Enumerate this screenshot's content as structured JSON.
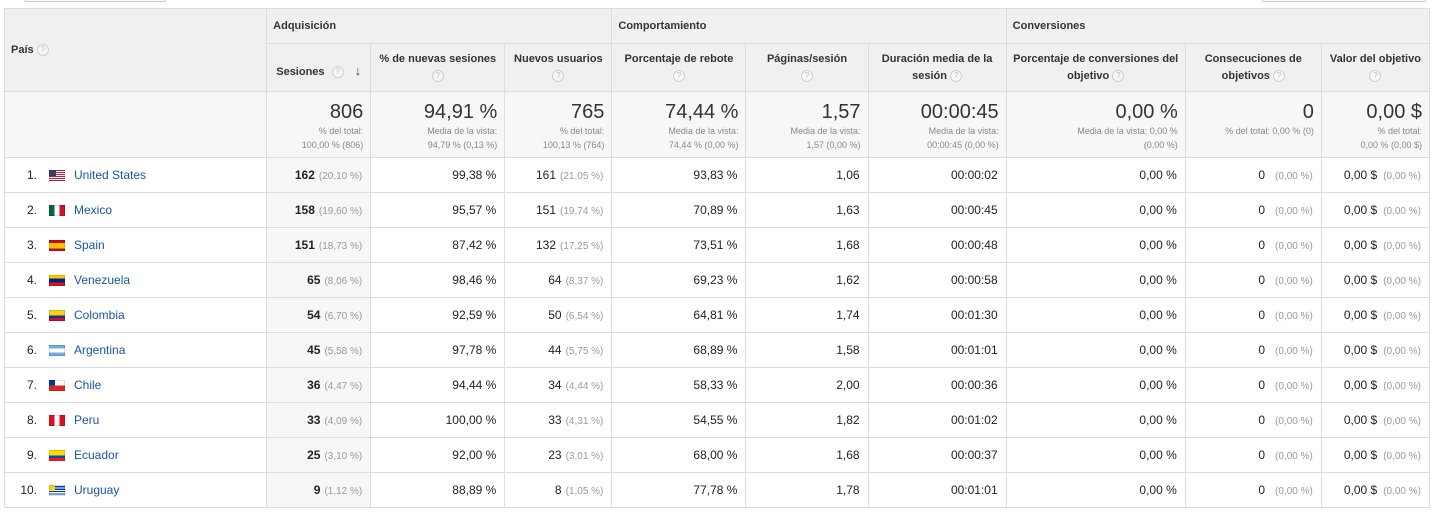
{
  "groups": {
    "acquisition": "Adquisición",
    "behavior": "Comportamiento",
    "conversions": "Conversiones"
  },
  "headers": {
    "country": "País",
    "sessions": "Sesiones",
    "new_sessions_pct": "% de nuevas sesiones",
    "new_users": "Nuevos usuarios",
    "bounce_rate": "Porcentaje de rebote",
    "pages_session": "Páginas/sesión",
    "avg_duration": "Duración media de la sesión",
    "goal_conv_rate": "Porcentaje de conversiones del objetivo",
    "goal_completions": "Consecuciones de objetivos",
    "goal_value": "Valor del objetivo"
  },
  "help_glyph": "?",
  "sort_glyph": "↓",
  "totals": {
    "sessions": {
      "value": "806",
      "sub1": "% del total:",
      "sub2": "100,00 % (806)"
    },
    "new_sessions_pct": {
      "value": "94,91 %",
      "sub1": "Media de la vista:",
      "sub2": "94,79 % (0,13 %)"
    },
    "new_users": {
      "value": "765",
      "sub1": "% del total:",
      "sub2": "100,13 % (764)"
    },
    "bounce_rate": {
      "value": "74,44 %",
      "sub1": "Media de la vista:",
      "sub2": "74,44 % (0,00 %)"
    },
    "pages_session": {
      "value": "1,57",
      "sub1": "Media de la vista:",
      "sub2": "1,57 (0,00 %)"
    },
    "avg_duration": {
      "value": "00:00:45",
      "sub1": "Media de la vista:",
      "sub2": "00:00:45 (0,00 %)"
    },
    "goal_conv_rate": {
      "value": "0,00 %",
      "sub1": "Media de la vista: 0,00 %",
      "sub2": "(0,00 %)"
    },
    "goal_completions": {
      "value": "0",
      "sub1": "% del total: 0,00 % (0)",
      "sub2": ""
    },
    "goal_value": {
      "value": "0,00 $",
      "sub1": "% del total:",
      "sub2": "0,00 % (0,00 $)"
    }
  },
  "rows": [
    {
      "idx": "1.",
      "country": "United States",
      "flag": "us",
      "sessions": "162",
      "sessions_pct": "(20,10 %)",
      "new_sessions_pct": "99,38 %",
      "new_users": "161",
      "new_users_pct": "(21,05 %)",
      "bounce_rate": "93,83 %",
      "pages_session": "1,06",
      "avg_duration": "00:00:02",
      "goal_conv_rate": "0,00 %",
      "goal_completions": "0",
      "goal_completions_pct": "(0,00 %)",
      "goal_value": "0,00 $",
      "goal_value_pct": "(0,00 %)"
    },
    {
      "idx": "2.",
      "country": "Mexico",
      "flag": "mx",
      "sessions": "158",
      "sessions_pct": "(19,60 %)",
      "new_sessions_pct": "95,57 %",
      "new_users": "151",
      "new_users_pct": "(19,74 %)",
      "bounce_rate": "70,89 %",
      "pages_session": "1,63",
      "avg_duration": "00:00:45",
      "goal_conv_rate": "0,00 %",
      "goal_completions": "0",
      "goal_completions_pct": "(0,00 %)",
      "goal_value": "0,00 $",
      "goal_value_pct": "(0,00 %)"
    },
    {
      "idx": "3.",
      "country": "Spain",
      "flag": "es",
      "sessions": "151",
      "sessions_pct": "(18,73 %)",
      "new_sessions_pct": "87,42 %",
      "new_users": "132",
      "new_users_pct": "(17,25 %)",
      "bounce_rate": "73,51 %",
      "pages_session": "1,68",
      "avg_duration": "00:00:48",
      "goal_conv_rate": "0,00 %",
      "goal_completions": "0",
      "goal_completions_pct": "(0,00 %)",
      "goal_value": "0,00 $",
      "goal_value_pct": "(0,00 %)"
    },
    {
      "idx": "4.",
      "country": "Venezuela",
      "flag": "ve",
      "sessions": "65",
      "sessions_pct": "(8,06 %)",
      "new_sessions_pct": "98,46 %",
      "new_users": "64",
      "new_users_pct": "(8,37 %)",
      "bounce_rate": "69,23 %",
      "pages_session": "1,62",
      "avg_duration": "00:00:58",
      "goal_conv_rate": "0,00 %",
      "goal_completions": "0",
      "goal_completions_pct": "(0,00 %)",
      "goal_value": "0,00 $",
      "goal_value_pct": "(0,00 %)"
    },
    {
      "idx": "5.",
      "country": "Colombia",
      "flag": "co",
      "sessions": "54",
      "sessions_pct": "(6,70 %)",
      "new_sessions_pct": "92,59 %",
      "new_users": "50",
      "new_users_pct": "(6,54 %)",
      "bounce_rate": "64,81 %",
      "pages_session": "1,74",
      "avg_duration": "00:01:30",
      "goal_conv_rate": "0,00 %",
      "goal_completions": "0",
      "goal_completions_pct": "(0,00 %)",
      "goal_value": "0,00 $",
      "goal_value_pct": "(0,00 %)"
    },
    {
      "idx": "6.",
      "country": "Argentina",
      "flag": "ar",
      "sessions": "45",
      "sessions_pct": "(5,58 %)",
      "new_sessions_pct": "97,78 %",
      "new_users": "44",
      "new_users_pct": "(5,75 %)",
      "bounce_rate": "68,89 %",
      "pages_session": "1,58",
      "avg_duration": "00:01:01",
      "goal_conv_rate": "0,00 %",
      "goal_completions": "0",
      "goal_completions_pct": "(0,00 %)",
      "goal_value": "0,00 $",
      "goal_value_pct": "(0,00 %)"
    },
    {
      "idx": "7.",
      "country": "Chile",
      "flag": "cl",
      "sessions": "36",
      "sessions_pct": "(4,47 %)",
      "new_sessions_pct": "94,44 %",
      "new_users": "34",
      "new_users_pct": "(4,44 %)",
      "bounce_rate": "58,33 %",
      "pages_session": "2,00",
      "avg_duration": "00:00:36",
      "goal_conv_rate": "0,00 %",
      "goal_completions": "0",
      "goal_completions_pct": "(0,00 %)",
      "goal_value": "0,00 $",
      "goal_value_pct": "(0,00 %)"
    },
    {
      "idx": "8.",
      "country": "Peru",
      "flag": "pe",
      "sessions": "33",
      "sessions_pct": "(4,09 %)",
      "new_sessions_pct": "100,00 %",
      "new_users": "33",
      "new_users_pct": "(4,31 %)",
      "bounce_rate": "54,55 %",
      "pages_session": "1,82",
      "avg_duration": "00:01:02",
      "goal_conv_rate": "0,00 %",
      "goal_completions": "0",
      "goal_completions_pct": "(0,00 %)",
      "goal_value": "0,00 $",
      "goal_value_pct": "(0,00 %)"
    },
    {
      "idx": "9.",
      "country": "Ecuador",
      "flag": "ec",
      "sessions": "25",
      "sessions_pct": "(3,10 %)",
      "new_sessions_pct": "92,00 %",
      "new_users": "23",
      "new_users_pct": "(3,01 %)",
      "bounce_rate": "68,00 %",
      "pages_session": "1,68",
      "avg_duration": "00:00:37",
      "goal_conv_rate": "0,00 %",
      "goal_completions": "0",
      "goal_completions_pct": "(0,00 %)",
      "goal_value": "0,00 $",
      "goal_value_pct": "(0,00 %)"
    },
    {
      "idx": "10.",
      "country": "Uruguay",
      "flag": "uy",
      "sessions": "9",
      "sessions_pct": "(1,12 %)",
      "new_sessions_pct": "88,89 %",
      "new_users": "8",
      "new_users_pct": "(1,05 %)",
      "bounce_rate": "77,78 %",
      "pages_session": "1,78",
      "avg_duration": "00:01:01",
      "goal_conv_rate": "0,00 %",
      "goal_completions": "0",
      "goal_completions_pct": "(0,00 %)",
      "goal_value": "0,00 $",
      "goal_value_pct": "(0,00 %)"
    }
  ],
  "flag_colors": {
    "us": [
      "#3c3b6e",
      "#b22234",
      "#ffffff"
    ],
    "mx": [
      "#006847",
      "#ffffff",
      "#ce1126"
    ],
    "es": [
      "#c60b1e",
      "#ffc400"
    ],
    "ve": [
      "#ffcc00",
      "#00247d",
      "#cf142b"
    ],
    "co": [
      "#fcd116",
      "#003893",
      "#ce1126"
    ],
    "ar": [
      "#74acdf",
      "#ffffff"
    ],
    "cl": [
      "#ffffff",
      "#d52b1e",
      "#0039a6"
    ],
    "pe": [
      "#d91023",
      "#ffffff"
    ],
    "ec": [
      "#ffdd00",
      "#034ea2",
      "#ed1c24"
    ],
    "uy": [
      "#ffffff",
      "#0038a8",
      "#fcd116"
    ]
  }
}
